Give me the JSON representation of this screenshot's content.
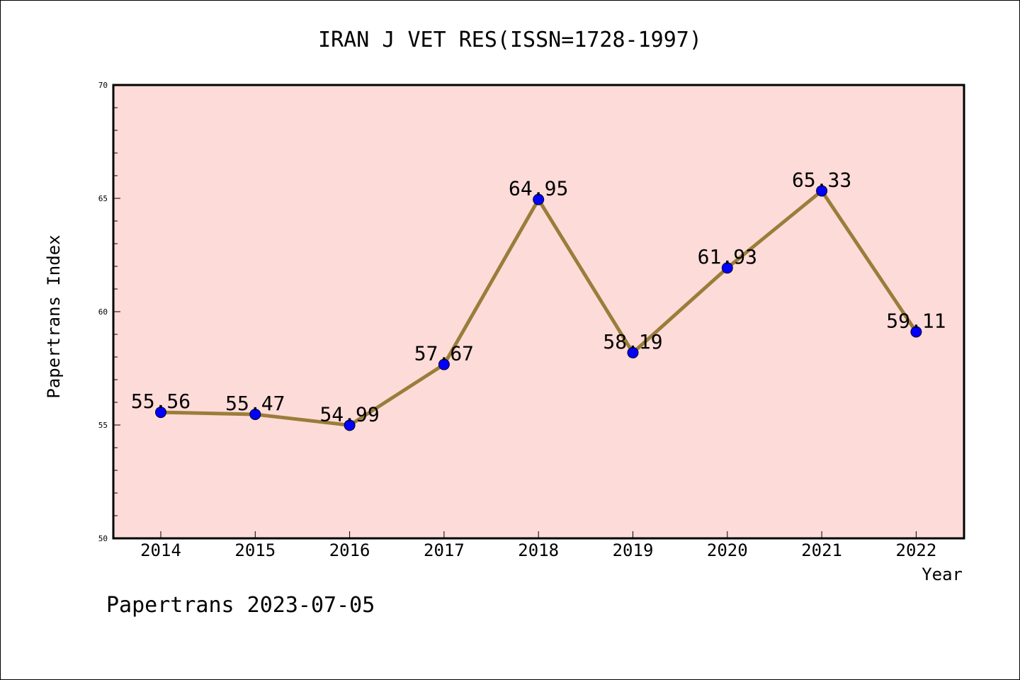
{
  "chart_data": {
    "type": "line",
    "title": "IRAN J VET RES(ISSN=1728-1997)",
    "xlabel": "Year",
    "ylabel": "Papertrans Index",
    "categories": [
      "2014",
      "2015",
      "2016",
      "2017",
      "2018",
      "2019",
      "2020",
      "2021",
      "2022"
    ],
    "series": [
      {
        "values": [
          55.56,
          55.47,
          54.99,
          57.67,
          64.95,
          58.19,
          61.93,
          65.33,
          59.11
        ],
        "labels": [
          "55.56",
          "55.47",
          "54.99",
          "57.67",
          "64.95",
          "58.19",
          "61.93",
          "65.33",
          "59.11"
        ]
      }
    ],
    "ylim": [
      50,
      70
    ],
    "y_ticks": [
      "50",
      "55",
      "60",
      "65",
      "70"
    ],
    "grid": false,
    "colors": {
      "plot_background": "#fddbd8",
      "line": "#9a7d3a",
      "marker": "#0000ff"
    }
  },
  "footer": {
    "text": "Papertrans 2023-07-05"
  }
}
